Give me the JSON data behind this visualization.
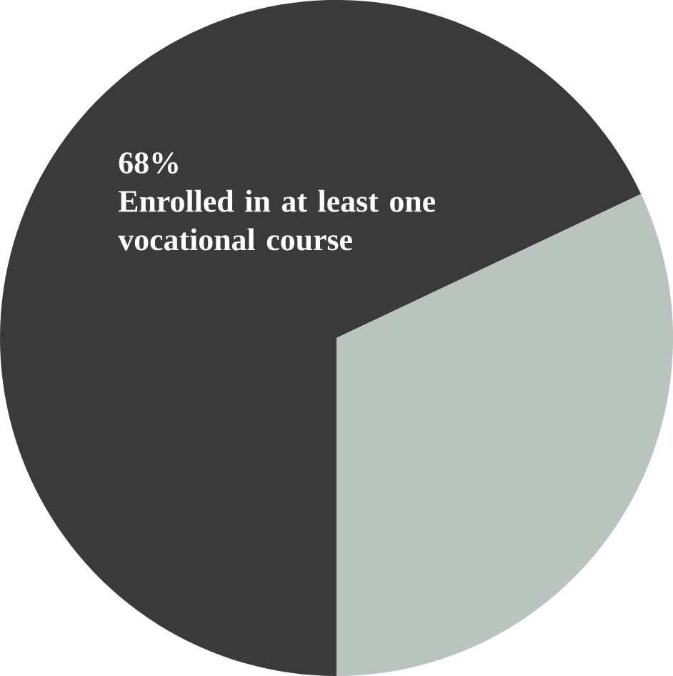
{
  "chart_data": {
    "type": "pie",
    "categories": [
      "Enrolled in at least one vocational course",
      null
    ],
    "values": [
      68,
      32
    ],
    "colors": [
      "#3a3a3a",
      "#b9c4bd"
    ],
    "value_labels": [
      "68%",
      null
    ]
  }
}
